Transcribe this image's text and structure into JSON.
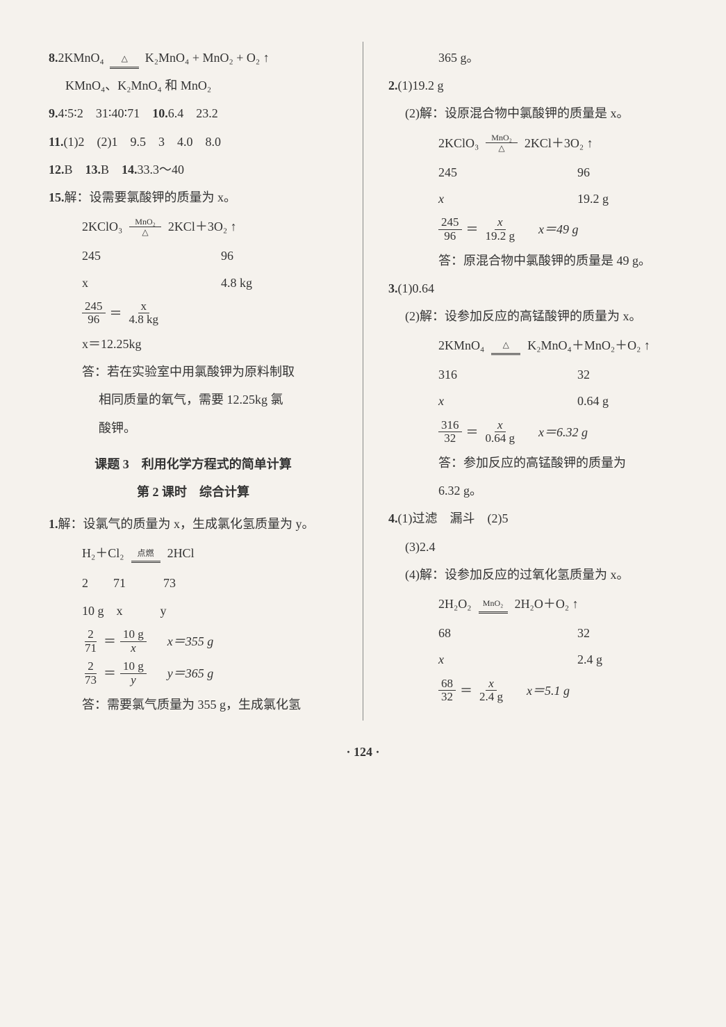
{
  "page_number": "· 124 ·",
  "left": {
    "q8": {
      "num": "8.",
      "eq": "2KMnO₄",
      "arrow_top": "△",
      "rhs": "K₂MnO₄ + MnO₂ + O₂ ↑",
      "line2": "KMnO₄、K₂MnO₄ 和 MnO₂"
    },
    "q9": {
      "num": "9.",
      "a": "4∶5∶2",
      "b": "31∶40∶71"
    },
    "q10": {
      "num": "10.",
      "a": "6.4",
      "b": "23.2"
    },
    "q11": {
      "num": "11.",
      "parts": "(1)2　(2)1　9.5　3　4.0　8.0"
    },
    "q12": {
      "num": "12.",
      "ans": "B"
    },
    "q13": {
      "num": "13.",
      "ans": "B"
    },
    "q14": {
      "num": "14.",
      "ans": "33.3～40"
    },
    "q15": {
      "num": "15.",
      "intro": "解：设需要氯酸钾的质量为 x。",
      "eq_l": "2KClO₃",
      "arrow_top": "MnO₂",
      "arrow_bot": "△",
      "eq_r": "2KCl＋3O₂ ↑",
      "row1_a": "245",
      "row1_b": "96",
      "row2_a": "x",
      "row2_b": "4.8 kg",
      "frac1_n": "245",
      "frac1_d": "96",
      "frac2_n": "x",
      "frac2_d": "4.8 kg",
      "solve": "x＝12.25kg",
      "ans1": "答：若在实验室中用氯酸钾为原料制取",
      "ans2": "相同质量的氧气，需要 12.25kg 氯",
      "ans3": "酸钾。"
    },
    "section": "课题 3　利用化学方程式的简单计算",
    "subsection": "第 2 课时　综合计算",
    "q1": {
      "num": "1.",
      "intro": "解：设氯气的质量为 x，生成氯化氢质量为 y。",
      "eq_l": "H₂＋Cl₂",
      "arrow_top": "点燃",
      "eq_r": "2HCl",
      "row1": "2　　71　　　73",
      "row2": "10 g　x　　　y",
      "f1a_n": "2",
      "f1a_d": "71",
      "f1b_n": "10 g",
      "f1b_d": "x",
      "s1": "x＝355 g",
      "f2a_n": "2",
      "f2a_d": "73",
      "f2b_n": "10 g",
      "f2b_d": "y",
      "s2": "y＝365 g",
      "ans": "答：需要氯气质量为 355 g，生成氯化氢"
    }
  },
  "right": {
    "cont": "365 g。",
    "q2": {
      "num": "2.",
      "p1": "(1)19.2 g",
      "p2": "(2)解：设原混合物中氯酸钾的质量是 x。",
      "eq_l": "2KClO₃",
      "arrow_top": "MnO₂",
      "arrow_bot": "△",
      "eq_r": "2KCl＋3O₂ ↑",
      "row1_a": "245",
      "row1_b": "96",
      "row2_a": "x",
      "row2_b": "19.2 g",
      "f1_n": "245",
      "f1_d": "96",
      "f2_n": "x",
      "f2_d": "19.2 g",
      "s": "x＝49 g",
      "ans": "答：原混合物中氯酸钾的质量是 49 g。"
    },
    "q3": {
      "num": "3.",
      "p1": "(1)0.64",
      "p2": "(2)解：设参加反应的高锰酸钾的质量为 x。",
      "eq_l": "2KMnO₄",
      "arrow_top": "△",
      "eq_r": "K₂MnO₄＋MnO₂＋O₂ ↑",
      "row1_a": "316",
      "row1_b": "32",
      "row2_a": "x",
      "row2_b": "0.64 g",
      "f1_n": "316",
      "f1_d": "32",
      "f2_n": "x",
      "f2_d": "0.64 g",
      "s": "x＝6.32 g",
      "ans1": "答：参加反应的高锰酸钾的质量为",
      "ans2": "6.32 g。"
    },
    "q4": {
      "num": "4.",
      "p1": "(1)过滤　漏斗　(2)5",
      "p3": "(3)2.4",
      "p4": "(4)解：设参加反应的过氧化氢质量为 x。",
      "eq_l": "2H₂O₂",
      "arrow_top": "MnO₂",
      "eq_r": "2H₂O＋O₂ ↑",
      "row1_a": "68",
      "row1_b": "32",
      "row2_a": "x",
      "row2_b": "2.4 g",
      "f1_n": "68",
      "f1_d": "32",
      "f2_n": "x",
      "f2_d": "2.4 g",
      "s": "x＝5.1 g"
    }
  }
}
